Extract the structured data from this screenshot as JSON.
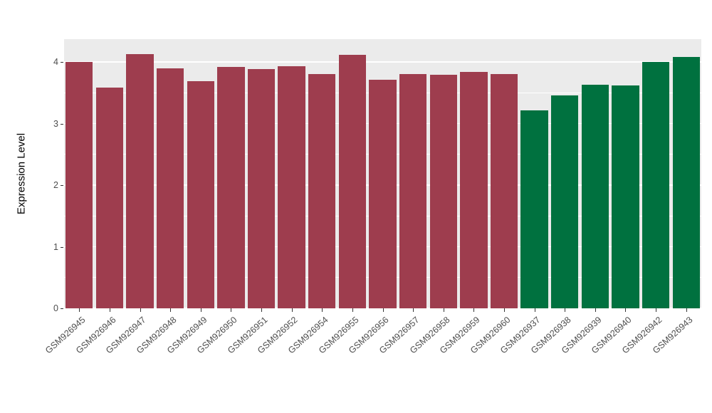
{
  "figure": {
    "background": "#FFFFFF",
    "panel_background": "#EBEBEB",
    "grid_color": "#FFFFFF",
    "tick_color": "#333333",
    "axis_text_color": "#4D4D4D",
    "axis_title_color": "#000000"
  },
  "chart_data": {
    "type": "bar",
    "title": "",
    "xlabel": "",
    "ylabel": "Expression Level",
    "ylim": [
      0,
      4.37
    ],
    "yticks": [
      0,
      1,
      2,
      3,
      4
    ],
    "minor_gridlines": [
      0.5,
      1.5,
      2.5,
      3.5
    ],
    "grid": true,
    "legend_position": "none",
    "bar_group_colors": {
      "group1": "#9E3D4E",
      "group2": "#00713F"
    },
    "categories": [
      "GSM926945",
      "GSM926946",
      "GSM926947",
      "GSM926948",
      "GSM926949",
      "GSM926950",
      "GSM926951",
      "GSM926952",
      "GSM926954",
      "GSM926955",
      "GSM926956",
      "GSM926957",
      "GSM926958",
      "GSM926959",
      "GSM926960",
      "GSM926937",
      "GSM926938",
      "GSM926939",
      "GSM926940",
      "GSM926942",
      "GSM926943"
    ],
    "values": [
      4.0,
      3.58,
      4.13,
      3.9,
      3.69,
      3.92,
      3.88,
      3.93,
      3.8,
      4.12,
      3.71,
      3.8,
      3.79,
      3.84,
      3.8,
      3.21,
      3.46,
      3.63,
      3.62,
      4.0,
      4.08
    ],
    "bar_colors": [
      "#9E3D4E",
      "#9E3D4E",
      "#9E3D4E",
      "#9E3D4E",
      "#9E3D4E",
      "#9E3D4E",
      "#9E3D4E",
      "#9E3D4E",
      "#9E3D4E",
      "#9E3D4E",
      "#9E3D4E",
      "#9E3D4E",
      "#9E3D4E",
      "#9E3D4E",
      "#9E3D4E",
      "#00713F",
      "#00713F",
      "#00713F",
      "#00713F",
      "#00713F",
      "#00713F"
    ]
  }
}
